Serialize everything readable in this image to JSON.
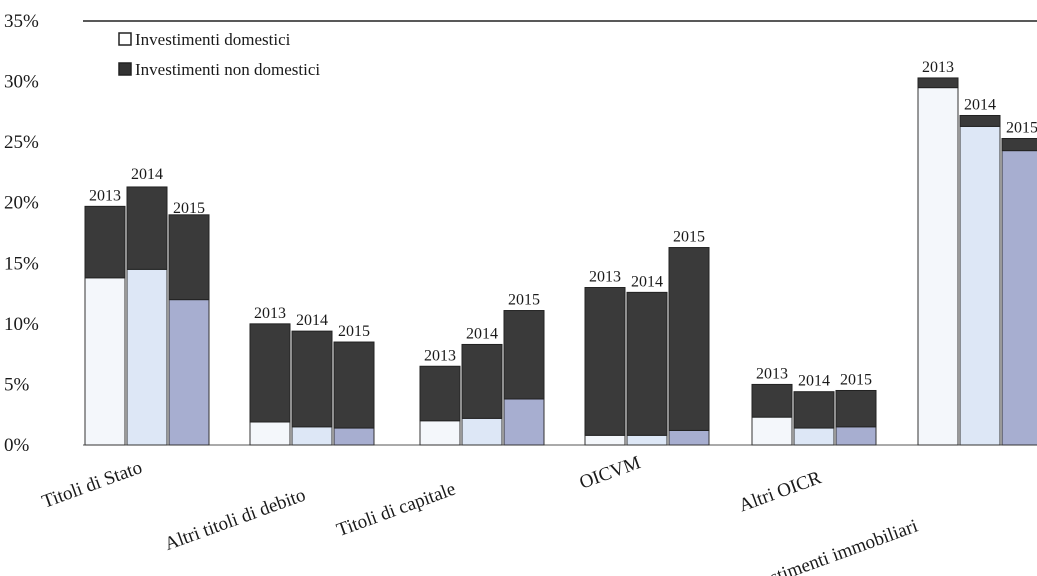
{
  "chart_data": {
    "type": "bar",
    "stacked": true,
    "title": "",
    "xlabel": "",
    "ylabel": "",
    "ylim": [
      0,
      35
    ],
    "y_ticks": [
      "0%",
      "5%",
      "10%",
      "15%",
      "20%",
      "25%",
      "30%",
      "35%"
    ],
    "grid": false,
    "legend_position": "top-left",
    "categories": [
      "Titoli di Stato",
      "Altri titoli di debito",
      "Titoli di capitale",
      "OICVM",
      "Altri OICR",
      "Investimenti immobiliari"
    ],
    "years": [
      "2013",
      "2014",
      "2015"
    ],
    "series": [
      {
        "name": "Investimenti domestici",
        "values": [
          [
            13.8,
            14.5,
            12.0
          ],
          [
            1.9,
            1.5,
            1.4
          ],
          [
            2.0,
            2.2,
            3.8
          ],
          [
            0.8,
            0.8,
            1.2
          ],
          [
            2.3,
            1.4,
            1.5
          ],
          [
            29.5,
            26.3,
            24.3
          ]
        ]
      },
      {
        "name": "Investimenti non domestici",
        "values": [
          [
            5.9,
            6.8,
            7.0
          ],
          [
            8.1,
            7.9,
            7.1
          ],
          [
            4.5,
            6.1,
            7.3
          ],
          [
            12.2,
            11.8,
            15.1
          ],
          [
            2.7,
            3.0,
            3.0
          ],
          [
            0.8,
            0.9,
            1.0
          ]
        ]
      }
    ],
    "colors": {
      "domestic_2013": "#f4f7fb",
      "domestic_2014": "#dde7f6",
      "domestic_2015": "#a7aed0",
      "non_domestic": "#3a3a3a",
      "axis": "#222222"
    }
  }
}
